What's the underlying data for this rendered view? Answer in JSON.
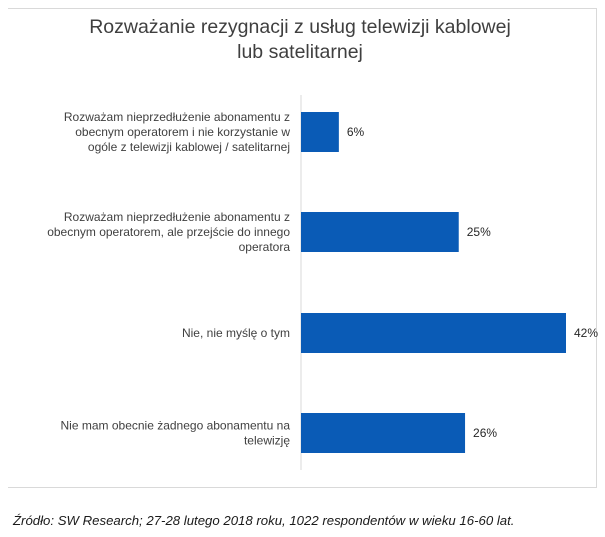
{
  "chart_data": {
    "type": "bar",
    "orientation": "horizontal",
    "title_lines": [
      "Rozważanie rezygnacji z usług telewizji kablowej",
      "lub satelitarnej"
    ],
    "categories": [
      [
        "Rozważam nieprzedłużenie abonamentu z",
        "obecnym operatorem i nie korzystanie w",
        "ogóle z telewizji kablowej / satelitarnej"
      ],
      [
        "Rozważam nieprzedłużenie abonamentu z",
        "obecnym operatorem, ale przejście do innego",
        "operatora"
      ],
      [
        "Nie, nie myślę o tym"
      ],
      [
        "Nie mam obecnie żadnego abonamentu na",
        "telewizję"
      ]
    ],
    "values": [
      6,
      25,
      42,
      26
    ],
    "value_labels": [
      "6%",
      "25%",
      "42%",
      "26%"
    ],
    "unit": "%",
    "xlim": [
      0,
      42
    ],
    "bar_color": "#0a5bb6",
    "axis_color": "#d9d9d9",
    "grid": false,
    "legend": "none"
  },
  "source": "Źródło: SW Research; 27-28 lutego 2018 roku, 1022 respondentów w wieku 16-60 lat."
}
